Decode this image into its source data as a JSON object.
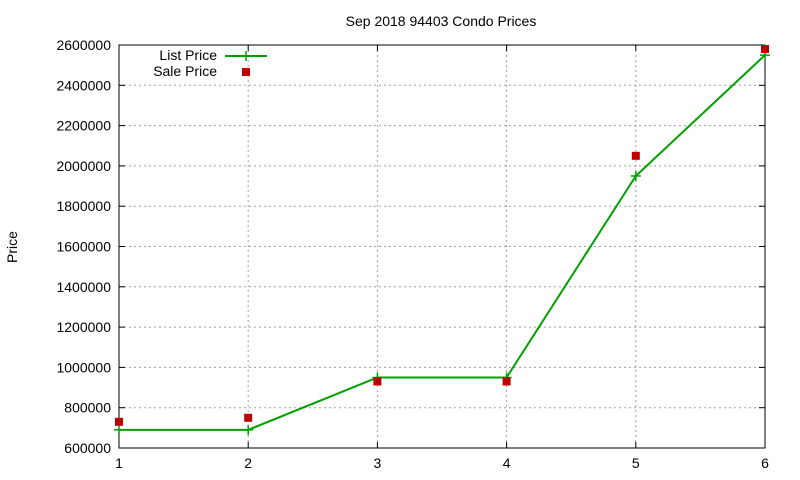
{
  "chart_data": {
    "type": "line",
    "title": "Sep 2018 94403 Condo Prices",
    "xlabel": "",
    "ylabel": "Price",
    "x": [
      1,
      2,
      3,
      4,
      5,
      6
    ],
    "xlim": [
      1,
      6
    ],
    "ylim": [
      600000,
      2600000
    ],
    "xticks": [
      "1",
      "2",
      "3",
      "4",
      "5",
      "6"
    ],
    "yticks": [
      "600000",
      "800000",
      "1000000",
      "1200000",
      "1400000",
      "1600000",
      "1800000",
      "2000000",
      "2200000",
      "2400000",
      "2600000"
    ],
    "grid": true,
    "legend_position": "top-left",
    "series": [
      {
        "name": "List Price",
        "style": "line+plus",
        "color": "#00a000",
        "values": [
          690000,
          690000,
          950000,
          950000,
          1950000,
          2550000
        ]
      },
      {
        "name": "Sale Price",
        "style": "square-markers",
        "color": "#c00000",
        "values": [
          730000,
          750000,
          930000,
          930000,
          2050000,
          2580000
        ]
      }
    ]
  }
}
